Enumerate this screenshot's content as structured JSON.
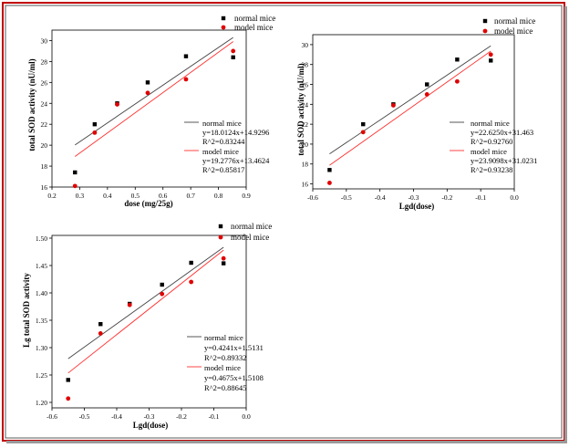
{
  "frame": {
    "border_color": "#c00000",
    "inner_border_color": "#5a5a5a"
  },
  "colors": {
    "normal": "#000000",
    "model": "#e00000",
    "normal_line": "#444444",
    "model_line": "#ff3030"
  },
  "chart_data": [
    {
      "type": "scatter",
      "xlabel": "dose (mg/25g)",
      "ylabel": "total SOD activity (nU/ml)",
      "xlim": [
        0.2,
        0.9
      ],
      "ylim": [
        16,
        31
      ],
      "xticks": [
        "0.2",
        "0.3",
        "0.4",
        "0.5",
        "0.6",
        "0.7",
        "0.8",
        "0.9"
      ],
      "yticks": [
        "16",
        "18",
        "20",
        "22",
        "24",
        "26",
        "28",
        "30"
      ],
      "legend": [
        "normal mice",
        "model mice"
      ],
      "series": [
        {
          "name": "normal mice",
          "marker": "square",
          "x": [
            0.283,
            0.354,
            0.435,
            0.545,
            0.683,
            0.853
          ],
          "y": [
            17.4,
            22.0,
            24.0,
            26.0,
            28.5,
            28.4
          ],
          "fit": {
            "slope": 18.0124,
            "intercept": 14.9296,
            "range": [
              0.283,
              0.853
            ]
          }
        },
        {
          "name": "model mice",
          "marker": "circle",
          "x": [
            0.283,
            0.354,
            0.435,
            0.545,
            0.683,
            0.853
          ],
          "y": [
            16.1,
            21.2,
            23.9,
            25.0,
            26.3,
            29.0
          ],
          "fit": {
            "slope": 19.2776,
            "intercept": 13.4624,
            "range": [
              0.283,
              0.853
            ]
          }
        }
      ],
      "fit_annotations": [
        "normal mice",
        "y=18.0124x+14.9296",
        "R^2=0.83244",
        "model mice",
        "y=19.2776x+13.4624",
        "R^2=0.85817"
      ]
    },
    {
      "type": "scatter",
      "xlabel": "Lgd(dose)",
      "ylabel": "total SOD activity (nU/ml)",
      "xlim": [
        -0.6,
        0.0
      ],
      "ylim": [
        15.5,
        31
      ],
      "xticks": [
        "-0.6",
        "-0.5",
        "-0.4",
        "-0.3",
        "-0.2",
        "-0.1",
        "0.0"
      ],
      "yticks": [
        "16",
        "18",
        "20",
        "22",
        "24",
        "26",
        "28",
        "30"
      ],
      "legend": [
        "normal mice",
        "model mice"
      ],
      "series": [
        {
          "name": "normal mice",
          "marker": "square",
          "x": [
            -0.55,
            -0.45,
            -0.36,
            -0.26,
            -0.17,
            -0.07
          ],
          "y": [
            17.4,
            22.0,
            24.0,
            26.0,
            28.5,
            28.4
          ],
          "fit": {
            "slope": 22.625,
            "intercept": 31.463,
            "range": [
              -0.55,
              -0.07
            ]
          }
        },
        {
          "name": "model mice",
          "marker": "circle",
          "x": [
            -0.55,
            -0.45,
            -0.36,
            -0.26,
            -0.17,
            -0.07
          ],
          "y": [
            16.1,
            21.2,
            23.9,
            25.0,
            26.3,
            29.0
          ],
          "fit": {
            "slope": 23.9098,
            "intercept": 31.0231,
            "range": [
              -0.55,
              -0.07
            ]
          }
        }
      ],
      "fit_annotations": [
        "normal  mice",
        "y=22.6250x+31.463",
        "R^2=0.92760",
        "model mice",
        "y=23.9098x+31.0231",
        "R^2=0.93238"
      ]
    },
    {
      "type": "scatter",
      "xlabel": "Lgd(dose)",
      "ylabel": "Lg total SOD activity",
      "xlim": [
        -0.6,
        0.0
      ],
      "ylim": [
        1.19,
        1.505
      ],
      "xticks": [
        "-0.6",
        "-0.5",
        "-0.4",
        "-0.3",
        "-0.2",
        "-0.1",
        "0.0"
      ],
      "yticks": [
        "1.20",
        "1.25",
        "1.30",
        "1.35",
        "1.40",
        "1.45",
        "1.50"
      ],
      "legend": [
        "normal mice",
        "model mice"
      ],
      "series": [
        {
          "name": "normal mice",
          "marker": "square",
          "x": [
            -0.55,
            -0.45,
            -0.36,
            -0.26,
            -0.17,
            -0.07
          ],
          "y": [
            1.241,
            1.343,
            1.38,
            1.415,
            1.455,
            1.454
          ],
          "fit": {
            "slope": 0.4241,
            "intercept": 1.5131,
            "range": [
              -0.55,
              -0.07
            ]
          }
        },
        {
          "name": "model mice",
          "marker": "circle",
          "x": [
            -0.55,
            -0.45,
            -0.36,
            -0.26,
            -0.17,
            -0.07
          ],
          "y": [
            1.207,
            1.326,
            1.378,
            1.398,
            1.42,
            1.463
          ],
          "fit": {
            "slope": 0.4675,
            "intercept": 1.5108,
            "range": [
              -0.55,
              -0.07
            ]
          }
        }
      ],
      "fit_annotations": [
        "normal mice",
        "y=0.4241x+1.5131",
        "R^2=0.89332",
        "model mice",
        "y=0.4675x+1.5108",
        "R^2=0.88645"
      ]
    }
  ]
}
